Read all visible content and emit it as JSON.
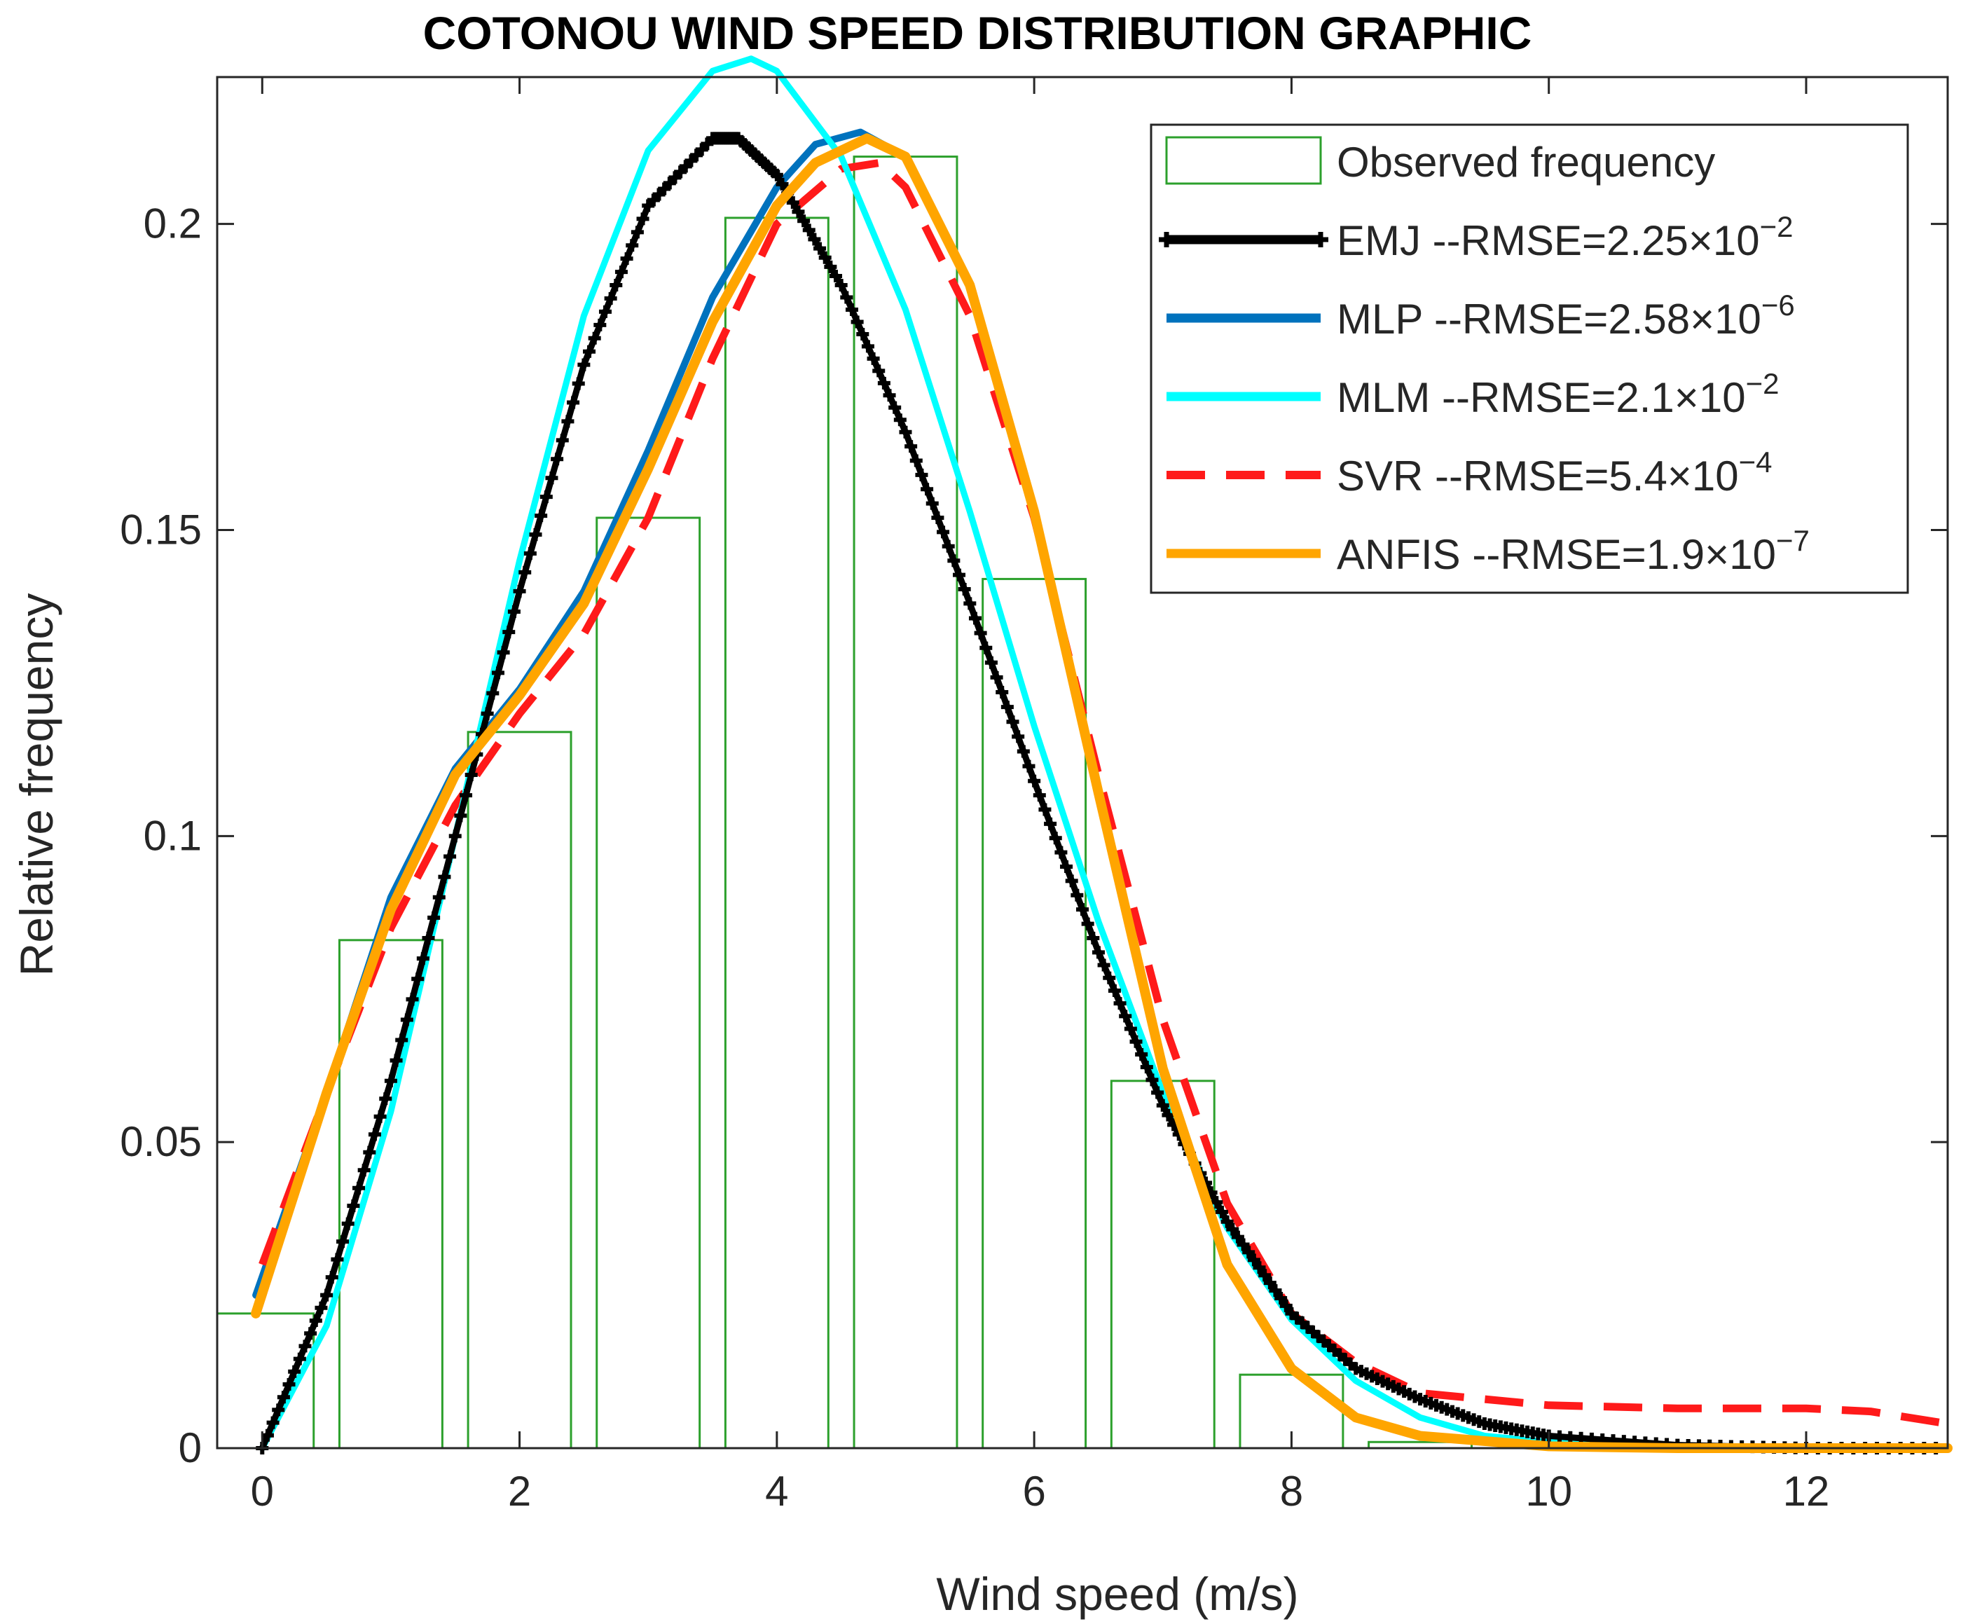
{
  "chart_data": {
    "type": "bar",
    "title": "COTONOU WIND SPEED DISTRIBUTION GRAPHIC",
    "xlabel": "Wind speed (m/s)",
    "ylabel": "Relative frequency",
    "xlim": [
      -0.35,
      13.1
    ],
    "ylim": [
      0,
      0.224
    ],
    "xticks": [
      0,
      2,
      4,
      6,
      8,
      10,
      12
    ],
    "yticks": [
      0,
      0.05,
      0.1,
      0.15,
      0.2
    ],
    "xtick_labels": [
      "0",
      "2",
      "4",
      "6",
      "8",
      "10",
      "12"
    ],
    "ytick_labels": [
      "0",
      "0.05",
      "0.1",
      "0.15",
      "0.2"
    ],
    "grid": false,
    "legend_position": "top-right",
    "histogram": {
      "name": "Observed frequency",
      "color": "#2ca02c",
      "bins": [
        {
          "x0": -0.35,
          "x1": 0.4,
          "value": 0.022
        },
        {
          "x0": 0.6,
          "x1": 1.4,
          "value": 0.083
        },
        {
          "x0": 1.6,
          "x1": 2.4,
          "value": 0.117
        },
        {
          "x0": 2.6,
          "x1": 3.4,
          "value": 0.152
        },
        {
          "x0": 3.6,
          "x1": 4.4,
          "value": 0.201
        },
        {
          "x0": 4.6,
          "x1": 5.4,
          "value": 0.211
        },
        {
          "x0": 5.6,
          "x1": 6.4,
          "value": 0.142
        },
        {
          "x0": 6.6,
          "x1": 7.4,
          "value": 0.06
        },
        {
          "x0": 7.6,
          "x1": 8.4,
          "value": 0.012
        },
        {
          "x0": 8.6,
          "x1": 9.4,
          "value": 0.001
        }
      ]
    },
    "series": [
      {
        "name": "EMJ",
        "rmse_mantissa": "2.25",
        "rmse_exponent": "−2",
        "color": "#000000",
        "style": "line-plus",
        "x": [
          0,
          0.5,
          1,
          1.5,
          2,
          2.5,
          3,
          3.5,
          3.7,
          4,
          4.5,
          5,
          5.5,
          6,
          6.5,
          7,
          7.5,
          8,
          8.5,
          9,
          9.5,
          10,
          11,
          12,
          13.1
        ],
        "y": [
          0,
          0.025,
          0.06,
          0.1,
          0.14,
          0.177,
          0.203,
          0.214,
          0.214,
          0.208,
          0.19,
          0.166,
          0.138,
          0.109,
          0.081,
          0.056,
          0.037,
          0.022,
          0.013,
          0.008,
          0.004,
          0.002,
          0.0005,
          0,
          0
        ]
      },
      {
        "name": "MLP",
        "rmse_mantissa": "2.58",
        "rmse_exponent": "−6",
        "color": "#0072bd",
        "style": "line",
        "x": [
          -0.05,
          0.5,
          1,
          1.5,
          2,
          2.5,
          3,
          3.5,
          4,
          4.3,
          4.65,
          5,
          5.5,
          6,
          6.5,
          7,
          7.5,
          8,
          8.5,
          9,
          10,
          11,
          12,
          13.1
        ],
        "y": [
          0.025,
          0.058,
          0.09,
          0.111,
          0.124,
          0.14,
          0.163,
          0.188,
          0.206,
          0.213,
          0.215,
          0.211,
          0.19,
          0.153,
          0.107,
          0.062,
          0.03,
          0.013,
          0.005,
          0.002,
          0.0003,
          0,
          0,
          0
        ]
      },
      {
        "name": "MLM",
        "rmse_mantissa": "2.1",
        "rmse_exponent": "−2",
        "color": "#00ffff",
        "style": "line",
        "x": [
          0,
          0.5,
          1,
          1.5,
          2,
          2.5,
          3,
          3.5,
          3.8,
          4,
          4.5,
          5,
          5.5,
          6,
          6.5,
          7,
          7.5,
          8,
          8.5,
          9,
          9.5,
          10,
          11,
          12,
          13.1
        ],
        "y": [
          0,
          0.02,
          0.055,
          0.1,
          0.145,
          0.185,
          0.212,
          0.225,
          0.227,
          0.225,
          0.211,
          0.186,
          0.153,
          0.118,
          0.086,
          0.058,
          0.036,
          0.021,
          0.011,
          0.005,
          0.002,
          0.001,
          0,
          0,
          0
        ]
      },
      {
        "name": "SVR",
        "rmse_mantissa": "5.4",
        "rmse_exponent": "−4",
        "color": "#ff1a1a",
        "style": "dashed",
        "x": [
          0,
          0.5,
          1,
          1.5,
          2,
          2.5,
          3,
          3.5,
          4,
          4.5,
          4.8,
          5,
          5.5,
          6,
          6.5,
          7,
          7.5,
          8,
          8.5,
          9,
          10,
          11,
          12,
          12.5,
          13.1
        ],
        "y": [
          0.03,
          0.058,
          0.085,
          0.105,
          0.12,
          0.133,
          0.152,
          0.178,
          0.2,
          0.209,
          0.21,
          0.206,
          0.185,
          0.152,
          0.11,
          0.07,
          0.04,
          0.022,
          0.014,
          0.009,
          0.007,
          0.0065,
          0.0065,
          0.006,
          0.004
        ]
      },
      {
        "name": "ANFIS",
        "rmse_mantissa": "1.9",
        "rmse_exponent": "−7",
        "color": "#ffa500",
        "style": "line",
        "x": [
          -0.05,
          0.5,
          1,
          1.5,
          2,
          2.5,
          3,
          3.5,
          4,
          4.3,
          4.7,
          5,
          5.5,
          6,
          6.5,
          7,
          7.5,
          8,
          8.5,
          9,
          10,
          11,
          12,
          13.1
        ],
        "y": [
          0.022,
          0.058,
          0.088,
          0.11,
          0.123,
          0.138,
          0.16,
          0.184,
          0.203,
          0.21,
          0.214,
          0.211,
          0.19,
          0.153,
          0.107,
          0.062,
          0.03,
          0.013,
          0.005,
          0.002,
          0.0003,
          0,
          0,
          0
        ]
      }
    ]
  }
}
